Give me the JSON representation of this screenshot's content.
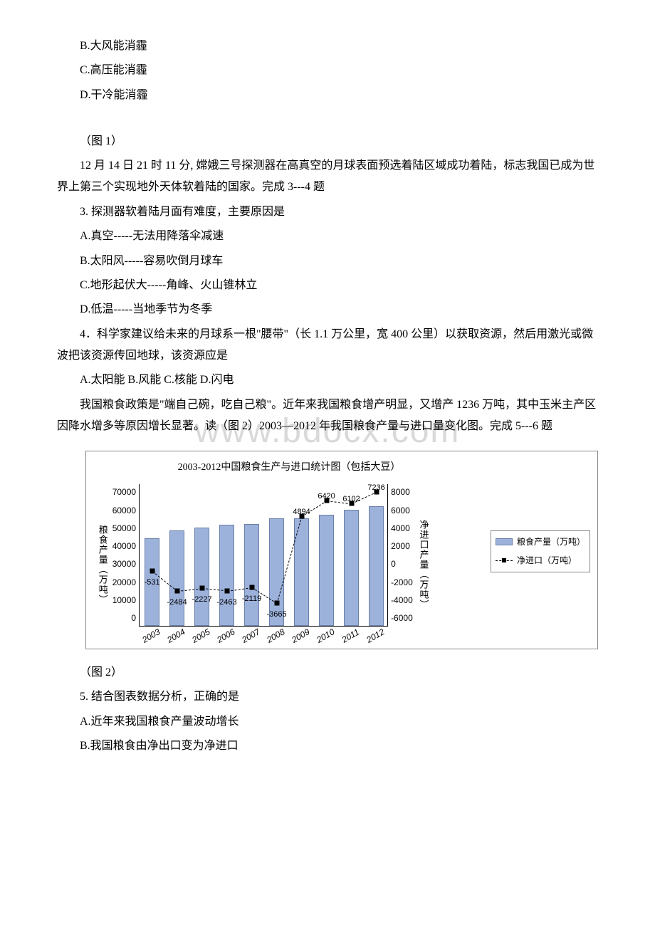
{
  "watermark": "www.bdocx.com",
  "options_b": "B.大风能消霾",
  "options_c": "C.高压能消霾",
  "options_d": "D.干冷能消霾",
  "fig1_label": "（图 1）",
  "passage_change3": "12 月 14 日 21 时 11 分, 嫦娥三号探测器在高真空的月球表面预选着陆区域成功着陆，标志我国已成为世界上第三个实现地外天体软着陆的国家。完成 3---4 题",
  "q3": "3. 探测器软着陆月面有难度，主要原因是",
  "q3a": "A.真空-----无法用降落伞减速",
  "q3b": "B.太阳风-----容易吹倒月球车",
  "q3c": "C.地形起伏大-----角峰、火山锥林立",
  "q3d": "D.低温-----当地季节为冬季",
  "q4": "4．科学家建议给未来的月球系一根\"腰带\"（长 1.1 万公里，宽 400 公里）以获取资源，然后用激光或微波把该资源传回地球，该资源应是",
  "q4opts": "A.太阳能 B.风能 C.核能 D.闪电",
  "passage_grain": "我国粮食政策是\"端自己碗，吃自己粮\"。近年来我国粮食增产明显，又增产 1236 万吨，其中玉米主产区因降水增多等原因增长显著。读（图 2）2003—2012 年我国粮食产量与进口量变化图。完成 5---6 题",
  "fig2_label": "（图 2）",
  "q5": "5. 结合图表数据分析，正确的是",
  "q5a": "A.近年来我国粮食产量波动增长",
  "q5b": "B.我国粮食由净出口变为净进口",
  "chart": {
    "title": "2003-2012中国粮食生产与进口统计图（包括大豆）",
    "y_left_label": "粮食产量（万吨）",
    "y_right_label": "净进口产量（万吨）",
    "y_left_ticks": [
      "70000",
      "60000",
      "50000",
      "40000",
      "30000",
      "20000",
      "10000",
      "0"
    ],
    "y_right_ticks": [
      "8000",
      "6000",
      "4000",
      "2000",
      "0",
      "-2000",
      "-4000",
      "-6000"
    ],
    "x_ticks": [
      "2003",
      "2004",
      "2005",
      "2006",
      "2007",
      "2008",
      "2009",
      "2010",
      "2011",
      "2012"
    ],
    "bar_values": [
      43000,
      46900,
      48400,
      49800,
      50100,
      52800,
      53100,
      54600,
      57100,
      59000
    ],
    "bar_color": "#9db2db",
    "bar_border": "#6a7fa8",
    "line_values": [
      -531,
      -2484,
      -2227,
      -2463,
      -2119,
      -3665,
      4894,
      6420,
      6102,
      7236
    ],
    "line_labels": [
      "-531",
      "-2484",
      "-2227",
      "-2463",
      "-2119",
      "-3665",
      "4894",
      "6420",
      "6102",
      "7236"
    ],
    "y_left_max": 70000,
    "y_right_min": -6000,
    "y_right_max": 8000,
    "legend_bar": "粮食产量（万吨）",
    "legend_line": "净进口（万吨）"
  }
}
